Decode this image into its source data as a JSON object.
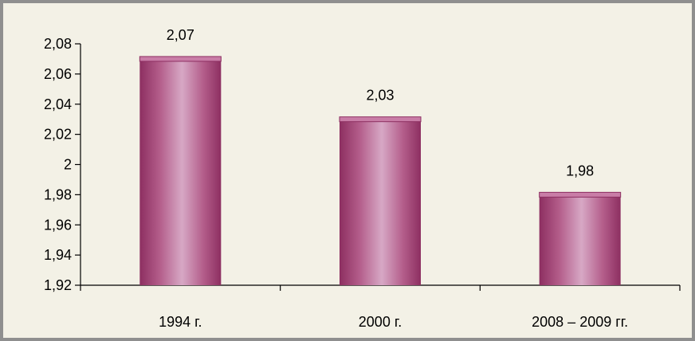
{
  "chart_data": {
    "type": "bar",
    "categories": [
      "1994 г.",
      "2000 г.",
      "2008 – 2009 гг."
    ],
    "values": [
      2.07,
      2.03,
      1.98
    ],
    "value_labels": [
      "2,07",
      "2,03",
      "1,98"
    ],
    "ylim": [
      1.92,
      2.08
    ],
    "yticks": [
      1.92,
      1.94,
      1.96,
      1.98,
      2.0,
      2.02,
      2.04,
      2.06,
      2.08
    ],
    "ytick_labels": [
      "1,92",
      "1,94",
      "1,96",
      "1,98",
      "2",
      "2,02",
      "2,04",
      "2,06",
      "2,08"
    ],
    "grid": false,
    "legend": "none",
    "colors": {
      "bar_dark": "#8d2f61",
      "bar_mid": "#b45e8b",
      "bar_light": "#d7a8c5",
      "bar_top": "#c97da7",
      "background": "#f3f1e6",
      "frame": "#8f8f8f"
    }
  }
}
